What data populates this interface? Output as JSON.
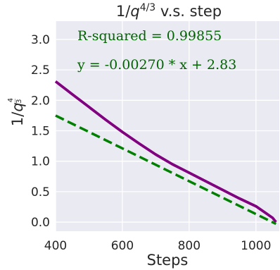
{
  "chart_data": {
    "type": "line",
    "title": "1/q^{4/3} v.s. step",
    "xlabel": "Steps",
    "ylabel": "1/q^{4/3}",
    "xlim": [
      400,
      1070
    ],
    "ylim": [
      -0.15,
      3.3
    ],
    "xticks": [
      "400",
      "600",
      "800",
      "1000"
    ],
    "xtick_values": [
      400,
      600,
      800,
      1000
    ],
    "yticks": [
      "0.0",
      "0.5",
      "1.0",
      "1.5",
      "2.0",
      "2.5",
      "3.0"
    ],
    "ytick_values": [
      0.0,
      0.5,
      1.0,
      1.5,
      2.0,
      2.5,
      3.0
    ],
    "grid": true,
    "background_color": "#EAEAF2",
    "annotations": [
      {
        "text": "R-squared = 0.99855",
        "color": "#006400"
      },
      {
        "text": "y = -0.00270 * x + 2.83",
        "color": "#006400"
      }
    ],
    "series": [
      {
        "style": "solid",
        "color": "#800080",
        "x": [
          400,
          450,
          500,
          550,
          600,
          650,
          700,
          750,
          800,
          850,
          900,
          950,
          1000,
          1050,
          1060
        ],
        "y": [
          2.31,
          2.1,
          1.89,
          1.68,
          1.48,
          1.29,
          1.11,
          0.95,
          0.81,
          0.67,
          0.53,
          0.39,
          0.26,
          0.07,
          0.0
        ]
      },
      {
        "style": "dashed",
        "color": "#008000",
        "x": [
          400,
          1060
        ],
        "y": [
          1.75,
          -0.03
        ]
      }
    ]
  }
}
